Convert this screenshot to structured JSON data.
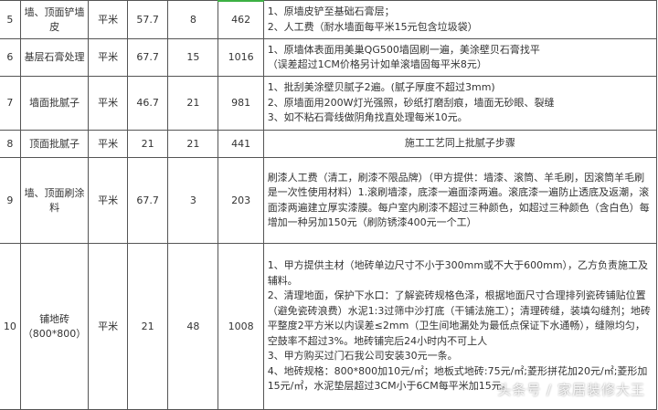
{
  "rows": [
    {
      "no": "5",
      "item": "墙、顶面铲墙皮",
      "unit": "平米",
      "qty": "57.7",
      "price": "8",
      "total": "462",
      "desc": [
        "1、原墙皮铲至基础石膏层；",
        "2、人工费（耐水墙面每平米15元包含垃圾袋）"
      ]
    },
    {
      "no": "6",
      "item": "基层石膏处理",
      "unit": "平米",
      "qty": "67.7",
      "price": "15",
      "total": "1016",
      "desc": [
        "1、原墙体表面用美巢QG500墙固刷一遍，美涂壁贝石膏找平",
        "（误差超过1CM价格另计如单滚墙固每平米8元）"
      ]
    },
    {
      "no": "7",
      "item": "墙面批腻子",
      "unit": "平米",
      "qty": "46.7",
      "price": "21",
      "total": "981",
      "desc": [
        "1、批刮美涂壁贝腻子2遍。(腻子厚度不超过3mm)",
        "2、原墙面用200W灯光强照，砂纸打磨刮痕，墙面无砂眼、裂缝",
        "3、如不粘石膏线做阴角找直处理每米10元。"
      ]
    },
    {
      "no": "8",
      "item": "顶面批腻子",
      "unit": "平米",
      "qty": "21",
      "price": "21",
      "total": "441",
      "desc": [
        "施工工艺同上批腻子步骤"
      ]
    },
    {
      "no": "9",
      "item": "墙、顶面刷涂料",
      "unit": "平米",
      "qty": "67.7",
      "price": "3",
      "total": "203",
      "desc": [
        "刷漆人工费（清工，刷漆不限品牌）（甲方提供：墙漆、滚筒、羊毛刷，因滚筒羊毛刷是一次性使用材料）1.滚刷墙漆，底漆一遍面漆两遍。滚底漆一遍防止透底及返潮，滚面漆两遍建立厚实漆膜。每户室内刷漆不超过三种颜色，如超过三种颜色（含白色）每增加一种另加150元（刷防锈漆400元一个工）"
      ]
    },
    {
      "no": "10",
      "item": "铺地砖（800*800）",
      "unit": "平米",
      "qty": "21",
      "price": "48",
      "total": "1008",
      "desc": [
        "1、甲方提供主材（地砖单边尺寸不小于300mm或不大于600mm），乙方负责施工及辅料。",
        "2、清理地面，保护下水口：了解瓷砖规格色泽，根据地面尺寸合理排列瓷砖铺贴位置（避免瓷砖浪费）水泥1:3过筛中沙打底（干铺法施工）；清理砖缝，装填勾缝剂；地砖平整度2平方米以内误差≤2mm（卫生间地漏处为最低点保证下水通畅），缝隙均匀，空鼓率不超过3%。地砖铺完后24小时内不可上人",
        "3、甲方购买过门石我公司安装30元一条。",
        "4、地砖规格：800*800加10元/㎡；地板式地砖:75元/㎡;菱形拼花加20元/㎡;菱形加15元/㎡，水泥垫层超过3CM小于6CM每平米加15元。"
      ]
    }
  ],
  "watermark": "头条号 / 家居装修大王",
  "colors": {
    "selection": "#3cb043",
    "border": "#555555"
  }
}
